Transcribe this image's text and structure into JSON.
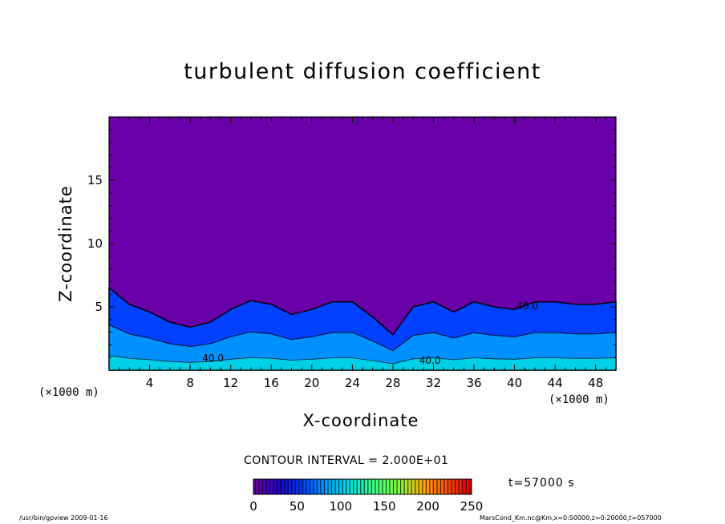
{
  "chart_data": {
    "type": "heatmap",
    "title": "turbulent diffusion coefficient",
    "xlabel": "X-coordinate",
    "ylabel": "Z-coordinate",
    "x_unit_label": "(×1000 m)",
    "xlim": [
      0,
      50
    ],
    "ylim": [
      0,
      20
    ],
    "x_ticks": [
      4,
      8,
      12,
      16,
      20,
      24,
      28,
      32,
      36,
      40,
      44,
      48
    ],
    "y_ticks": [
      5,
      10,
      15
    ],
    "contour_labels": [
      {
        "text": "40.0",
        "x": 9.2,
        "z": 0.7
      },
      {
        "text": "40.0",
        "x": 30.6,
        "z": 0.5
      },
      {
        "text": "40.0",
        "x": 40.2,
        "z": 4.8
      }
    ],
    "field_description_levels": {
      "background_value": 0,
      "turbulent_layer_top_z": [
        6.5,
        5.2,
        4.6,
        3.8,
        3.4,
        3.8,
        4.8,
        5.5,
        5.2,
        4.4,
        4.8,
        5.4,
        5.4,
        4.2,
        2.8,
        5.0,
        5.4,
        4.6,
        5.4,
        5.0,
        4.8,
        5.4,
        5.4,
        5.2,
        5.2,
        5.4
      ]
    },
    "colorbar": {
      "min": 0,
      "max": 250,
      "ticks": [
        0,
        50,
        100,
        150,
        200,
        250
      ],
      "colors": [
        "#6a00a8",
        "#2000c8",
        "#0040ff",
        "#00a0ff",
        "#00e0e0",
        "#40ff80",
        "#80ff40",
        "#ffb000",
        "#ff5000",
        "#e00000"
      ]
    },
    "contour_interval_text": "CONTOUR INTERVAL = 2.000E+01"
  },
  "annotations": {
    "time": "t=57000 s",
    "footer_left": "/usr/bin/gpview   2009-01-16",
    "footer_right": "MarsCond_Km.nc@Km,x=0:50000,z=0:20000,t=057000"
  }
}
